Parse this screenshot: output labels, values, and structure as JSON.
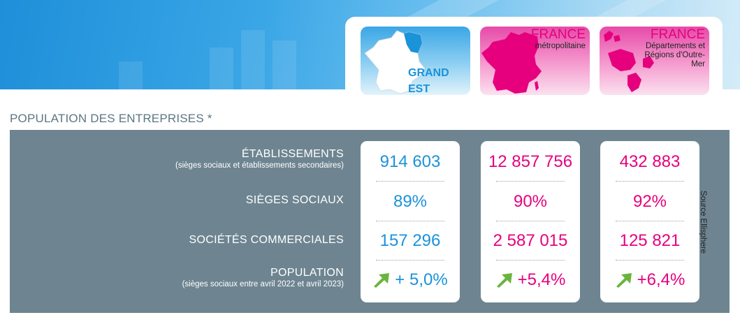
{
  "maps": {
    "grand_est": {
      "label": "GRAND EST"
    },
    "france_metro": {
      "title": "FRANCE",
      "subtitle": "métropolitaine"
    },
    "france_dom": {
      "title": "FRANCE",
      "subtitle": "Départements et Régions d'Outre-Mer"
    }
  },
  "section_title": "POPULATION DES ENTREPRISES *",
  "rows": [
    {
      "label": "ÉTABLISSEMENTS",
      "sub": "(sièges sociaux et établissements secondaires)"
    },
    {
      "label": "SIÈGES SOCIAUX",
      "sub": ""
    },
    {
      "label": "SOCIÉTÉS COMMERCIALES",
      "sub": ""
    },
    {
      "label": "POPULATION",
      "sub": "(sièges sociaux entre avril 2022 et avril 2023)"
    }
  ],
  "columns": [
    {
      "region": "GRAND EST",
      "etablissements": "914 603",
      "sieges": "89%",
      "societes": "157 296",
      "population": "+ 5,0%",
      "trend_icon": "arrow-up-right-icon"
    },
    {
      "region": "FRANCE métropolitaine",
      "etablissements": "12 857 756",
      "sieges": "90%",
      "societes": "2 587 015",
      "population": "+5,4%",
      "trend_icon": "arrow-up-right-icon"
    },
    {
      "region": "FRANCE Départements et Régions d'Outre-Mer",
      "etablissements": "432 883",
      "sieges": "92%",
      "societes": "125 821",
      "population": "+6,4%",
      "trend_icon": "arrow-up-right-icon"
    }
  ],
  "source": "Source Ellisphere",
  "colors": {
    "blue": "#1a93d9",
    "magenta": "#e6007e",
    "panel": "#6e8591",
    "arrow": "#6ab43e"
  }
}
